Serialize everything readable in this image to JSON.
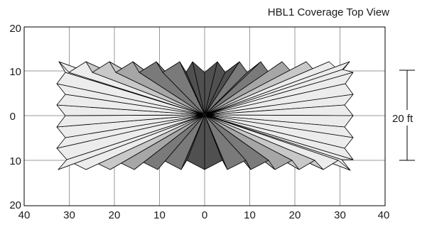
{
  "title": "HBL1 Coverage Top View",
  "x_ticks": [
    "40",
    "30",
    "20",
    "10",
    "0",
    "10",
    "20",
    "30",
    "40"
  ],
  "y_ticks": [
    "20",
    "10",
    "0",
    "10",
    "20"
  ],
  "dimension_label": "20 ft",
  "chart_data": {
    "type": "diagram",
    "title": "HBL1 Coverage Top View",
    "xlim": [
      -40,
      40
    ],
    "ylim": [
      -20,
      20
    ],
    "grid": true,
    "x_tick_values": [
      -40,
      -30,
      -20,
      -10,
      0,
      10,
      20,
      30,
      40
    ],
    "y_tick_values": [
      20,
      10,
      0,
      -10,
      -20
    ],
    "coverage": {
      "center": [
        0,
        0
      ],
      "half_width_ft": 33,
      "half_height_ft": 10
    },
    "dimension": {
      "label": "20 ft",
      "span_ft": 20
    }
  },
  "colors": {
    "grid": "#9a9a9a",
    "outline": "#000000",
    "shade_lightest": "#ececec",
    "shade_light": "#c8c8c8",
    "shade_mid": "#a6a6a6",
    "shade_dark": "#7a7a7a",
    "shade_darkest": "#505050"
  }
}
